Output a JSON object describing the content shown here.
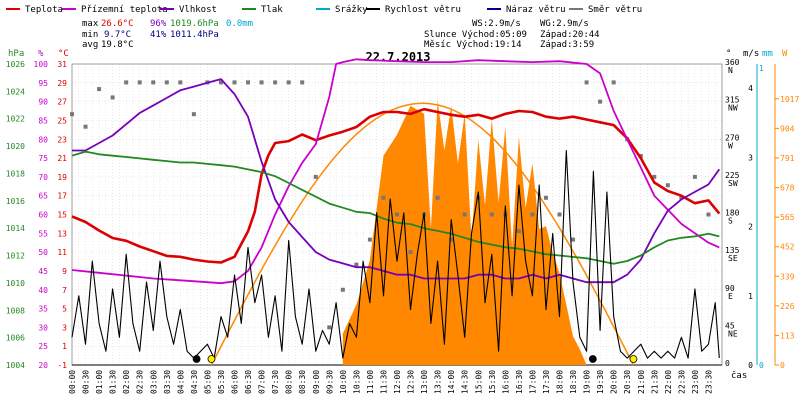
{
  "legend": [
    {
      "name": "Teplota",
      "color": "#dd0000"
    },
    {
      "name": "Přízemní teplota",
      "color": "#cc00cc"
    },
    {
      "name": "Vlhkost",
      "color": "#7700bb"
    },
    {
      "name": "Tlak",
      "color": "#228822"
    },
    {
      "name": "Srážky",
      "color": "#00aacc"
    },
    {
      "name": "Rychlost větru",
      "color": "#000000"
    },
    {
      "name": "Náraz větru",
      "color": "#000088"
    },
    {
      "name": "Směr větru",
      "color": "#777777"
    }
  ],
  "stats": {
    "max_label": "max",
    "max_temp": "26.6°C",
    "max_hum": "96%",
    "max_press": "1019.6hPa",
    "rain": "0.0mm",
    "min_label": "min",
    "min_temp": "9.7°C",
    "min_hum": "41%",
    "min_press": "1011.4hPa",
    "avg_label": "avg",
    "avg_temp": "19.8°C"
  },
  "info": {
    "ws": "WS:2.9m/s",
    "wg": "WG:2.9m/s",
    "sun": "Slunce Východ:05:09",
    "sun_set": "Západ:20:44",
    "moon": "Měsíc Východ:19:14",
    "moon_set": "Západ:3:59"
  },
  "chart_data": {
    "type": "line",
    "title": "22.7.2013",
    "xlabel": "čas",
    "x_ticks": [
      "00:00",
      "00:30",
      "01:00",
      "01:30",
      "02:00",
      "02:30",
      "03:00",
      "03:30",
      "04:00",
      "04:30",
      "05:00",
      "05:30",
      "06:00",
      "06:30",
      "07:00",
      "07:30",
      "08:00",
      "08:30",
      "09:00",
      "09:30",
      "10:00",
      "10:30",
      "11:00",
      "11:30",
      "12:00",
      "12:30",
      "13:00",
      "13:30",
      "14:00",
      "14:30",
      "15:00",
      "15:30",
      "16:00",
      "16:30",
      "17:00",
      "17:30",
      "18:00",
      "18:30",
      "19:00",
      "19:30",
      "20:00",
      "20:30",
      "21:00",
      "21:30",
      "22:00",
      "22:30",
      "23:00",
      "23:30"
    ],
    "axes": {
      "hpa": {
        "unit": "hPa",
        "ticks": [
          "1026",
          "1024",
          "1022",
          "1020",
          "1018",
          "1016",
          "1014",
          "1012",
          "1010",
          "1008",
          "1006",
          "1004"
        ],
        "range": [
          1004,
          1026
        ]
      },
      "percent": {
        "unit": "%",
        "ticks": [
          "100",
          "95",
          "90",
          "85",
          "80",
          "75",
          "70",
          "65",
          "60",
          "55",
          "50",
          "45",
          "40",
          "35",
          "30",
          "25",
          "20"
        ],
        "range": [
          20,
          100
        ]
      },
      "celsius": {
        "unit": "°C",
        "ticks": [
          "31",
          "29",
          "27",
          "25",
          "23",
          "21",
          "19",
          "17",
          "15",
          "13",
          "11",
          "9",
          "7",
          "5",
          "3",
          "1",
          "-1"
        ],
        "range": [
          -1,
          31
        ]
      },
      "direction": {
        "unit": "°",
        "ticks": [
          "360",
          "315",
          "270",
          "225",
          "180",
          "135",
          "90",
          "45",
          "0"
        ],
        "names": [
          "N",
          "NW",
          "W",
          "SW",
          "S",
          "SE",
          "E",
          "NE",
          ""
        ],
        "range": [
          0,
          360
        ]
      },
      "wind": {
        "unit": "m/s",
        "ticks": [
          "4",
          "3",
          "2",
          "1",
          "0"
        ],
        "range": [
          0,
          4.35
        ]
      },
      "rain": {
        "unit": "mm",
        "ticks": [
          "1",
          "0"
        ],
        "range": [
          0,
          1
        ]
      },
      "solar": {
        "unit": "W",
        "ticks": [
          "1017",
          "904",
          "791",
          "678",
          "565",
          "452",
          "339",
          "226",
          "113",
          "0"
        ],
        "range": [
          0,
          1150
        ]
      }
    },
    "series": [
      {
        "name": "Teplota",
        "axis": "celsius",
        "color": "#dd0000",
        "x": [
          0,
          0.5,
          1,
          1.5,
          2,
          2.5,
          3,
          3.5,
          4,
          4.5,
          5,
          5.5,
          6,
          6.5,
          6.75,
          7,
          7.25,
          7.5,
          8,
          8.5,
          9,
          9.5,
          10,
          10.5,
          11,
          11.5,
          12,
          12.5,
          13,
          13.5,
          14,
          14.5,
          15,
          15.5,
          16,
          16.5,
          17,
          17.5,
          18,
          18.5,
          19,
          19.5,
          20,
          20.5,
          21,
          21.5,
          22,
          22.5,
          23,
          23.5,
          23.9
        ],
        "y": [
          14.8,
          14.2,
          13.3,
          12.5,
          12.2,
          11.6,
          11.1,
          10.6,
          10.5,
          10.2,
          10.0,
          9.9,
          10.5,
          13.2,
          15.3,
          19.3,
          21.3,
          22.6,
          22.8,
          23.5,
          22.9,
          23.4,
          23.8,
          24.3,
          25.4,
          25.9,
          25.9,
          25.7,
          26.2,
          25.9,
          25.6,
          25.4,
          25.6,
          25.2,
          25.7,
          26.0,
          25.9,
          25.4,
          25.2,
          25.4,
          25.1,
          24.8,
          24.5,
          23.1,
          21.0,
          18.4,
          17.5,
          17.0,
          16.2,
          16.5,
          15.1
        ]
      },
      {
        "name": "Přízemní teplota",
        "axis": "celsius",
        "color": "#cc00cc",
        "x": [
          0,
          1,
          2,
          3,
          4,
          5,
          5.5,
          6,
          6.5,
          7,
          7.5,
          8,
          8.5,
          9,
          9.5,
          9.75,
          10,
          10.5,
          11,
          12,
          13,
          14,
          15,
          16,
          17,
          18,
          19,
          19.5,
          20,
          20.5,
          21,
          21.5,
          22,
          22.5,
          23,
          23.5,
          23.9
        ],
        "y": [
          9.1,
          8.8,
          8.5,
          8.2,
          8.0,
          7.8,
          7.7,
          7.9,
          9.0,
          11.5,
          15.0,
          18.0,
          20.5,
          22.5,
          27.5,
          31.0,
          31.2,
          31.5,
          31.4,
          31.3,
          31.2,
          31.2,
          31.4,
          31.3,
          31.2,
          31.3,
          31.0,
          30.0,
          26.0,
          23.0,
          20.0,
          17.0,
          15.5,
          14.0,
          13.0,
          12.0,
          11.5
        ]
      },
      {
        "name": "Vlhkost",
        "axis": "percent",
        "color": "#7700bb",
        "x": [
          0,
          0.5,
          1,
          1.5,
          2,
          2.5,
          3,
          3.5,
          4,
          4.5,
          5,
          5.5,
          6,
          6.5,
          7,
          7.5,
          8,
          8.5,
          9,
          9.5,
          10,
          10.5,
          11,
          11.5,
          12,
          12.5,
          13,
          13.5,
          14,
          14.5,
          15,
          15.5,
          16,
          16.5,
          17,
          17.5,
          18,
          18.5,
          19,
          19.5,
          20,
          20.5,
          21,
          21.5,
          22,
          22.5,
          23,
          23.5,
          23.9
        ],
        "y": [
          77,
          77,
          79,
          81,
          84,
          87,
          89,
          91,
          93,
          94,
          95,
          96,
          92,
          86,
          74,
          64,
          58,
          54,
          50,
          48,
          47,
          46,
          46,
          45,
          44,
          44,
          43,
          43,
          43,
          43,
          44,
          44,
          43,
          43,
          44,
          43,
          44,
          43,
          42,
          42,
          42,
          44,
          48,
          55,
          61,
          64,
          66,
          68,
          72
        ]
      },
      {
        "name": "Tlak",
        "axis": "hpa",
        "color": "#228822",
        "x": [
          0,
          0.5,
          1,
          1.5,
          2,
          2.5,
          3,
          3.5,
          4,
          4.5,
          5,
          5.5,
          6,
          6.5,
          7,
          7.5,
          8,
          8.5,
          9,
          9.5,
          10,
          10.5,
          11,
          11.5,
          12,
          12.5,
          13,
          13.5,
          14,
          14.5,
          15,
          15.5,
          16,
          16.5,
          17,
          17.5,
          18,
          18.5,
          19,
          19.5,
          20,
          20.5,
          21,
          21.5,
          22,
          22.5,
          23,
          23.5,
          23.9
        ],
        "y": [
          1019.3,
          1019.6,
          1019.4,
          1019.3,
          1019.2,
          1019.1,
          1019.0,
          1018.9,
          1018.8,
          1018.8,
          1018.7,
          1018.6,
          1018.5,
          1018.3,
          1018.1,
          1017.8,
          1017.3,
          1016.8,
          1016.3,
          1015.8,
          1015.5,
          1015.2,
          1015.1,
          1014.7,
          1014.4,
          1014.3,
          1014.0,
          1013.8,
          1013.6,
          1013.3,
          1013.0,
          1012.8,
          1012.6,
          1012.5,
          1012.3,
          1012.1,
          1012.0,
          1011.9,
          1011.8,
          1011.6,
          1011.4,
          1011.6,
          1012.0,
          1012.6,
          1013.1,
          1013.3,
          1013.4,
          1013.6,
          1013.4
        ]
      },
      {
        "name": "Rychlost větru",
        "axis": "wind",
        "color": "#000000",
        "x": [
          0,
          0.25,
          0.5,
          0.75,
          1,
          1.25,
          1.5,
          1.75,
          2,
          2.25,
          2.5,
          2.75,
          3,
          3.25,
          3.5,
          3.75,
          4,
          4.25,
          4.5,
          4.75,
          5,
          5.25,
          5.5,
          5.75,
          6,
          6.25,
          6.5,
          6.75,
          7,
          7.25,
          7.5,
          7.75,
          8,
          8.25,
          8.5,
          8.75,
          9,
          9.25,
          9.5,
          9.75,
          10,
          10.25,
          10.5,
          10.75,
          11,
          11.25,
          11.5,
          11.75,
          12,
          12.25,
          12.5,
          12.75,
          13,
          13.25,
          13.5,
          13.75,
          14,
          14.25,
          14.5,
          14.75,
          15,
          15.25,
          15.5,
          15.75,
          16,
          16.25,
          16.5,
          16.75,
          17,
          17.25,
          17.5,
          17.75,
          18,
          18.25,
          18.5,
          18.75,
          19,
          19.25,
          19.5,
          19.75,
          20,
          20.25,
          20.5,
          20.75,
          21,
          21.25,
          21.5,
          21.75,
          22,
          22.25,
          22.5,
          22.75,
          23,
          23.25,
          23.5,
          23.75,
          23.9
        ],
        "y": [
          0.4,
          1.0,
          0.3,
          1.5,
          0.6,
          0.2,
          1.1,
          0.4,
          1.6,
          0.6,
          0.2,
          1.2,
          0.5,
          1.5,
          0.7,
          0.3,
          0.8,
          0.2,
          0.1,
          0.2,
          0.3,
          0.1,
          0.7,
          0.4,
          1.3,
          0.6,
          1.7,
          0.9,
          1.3,
          0.4,
          1.0,
          0.2,
          1.8,
          0.7,
          0.3,
          1.1,
          0.2,
          0.5,
          0.3,
          0.9,
          0.1,
          0.6,
          0.4,
          1.5,
          0.9,
          2.2,
          1.0,
          2.4,
          1.5,
          2.2,
          0.8,
          1.6,
          2.2,
          0.6,
          1.5,
          0.3,
          2.1,
          1.3,
          0.4,
          1.9,
          2.5,
          0.9,
          1.6,
          0.2,
          2.3,
          1.0,
          2.6,
          1.5,
          1.0,
          2.6,
          0.8,
          1.9,
          0.7,
          3.1,
          1.2,
          0.4,
          0.2,
          2.8,
          0.5,
          2.5,
          0.7,
          0.2,
          0.1,
          0.2,
          0.3,
          0.1,
          0.2,
          0.1,
          0.2,
          0.1,
          0.4,
          0.1,
          1.1,
          0.2,
          0.3,
          0.9,
          0.1
        ]
      },
      {
        "name": "Směr větru",
        "axis": "direction",
        "color": "#777777",
        "x": [
          0,
          0.5,
          1,
          1.5,
          2,
          2.5,
          3,
          3.5,
          4,
          4.5,
          5,
          5.5,
          6,
          6.5,
          7,
          7.5,
          8,
          8.5,
          9,
          9.5,
          10,
          10.5,
          11,
          11.5,
          12,
          12.5,
          13,
          13.5,
          14,
          14.5,
          15,
          15.5,
          16,
          16.5,
          17,
          17.5,
          18,
          18.5,
          19,
          19.5,
          20,
          20.5,
          21,
          21.5,
          22,
          22.5,
          23,
          23.5
        ],
        "y": [
          300,
          285,
          330,
          320,
          338,
          338,
          338,
          338,
          338,
          300,
          338,
          338,
          338,
          338,
          338,
          338,
          338,
          338,
          225,
          45,
          90,
          120,
          150,
          200,
          180,
          135,
          180,
          200,
          150,
          180,
          200,
          180,
          180,
          160,
          180,
          200,
          180,
          150,
          338,
          315,
          338,
          270,
          250,
          225,
          215,
          200,
          225,
          180
        ]
      }
    ],
    "solar": {
      "axis": "solar",
      "color": "#ff8800",
      "x": [
        10,
        10.5,
        11,
        11.5,
        12,
        12.5,
        13,
        13.25,
        13.5,
        13.75,
        14,
        14.25,
        14.5,
        14.75,
        15,
        15.25,
        15.5,
        15.75,
        16,
        16.25,
        16.5,
        16.75,
        17,
        17.25,
        17.5,
        17.75,
        18,
        18.25,
        18.5,
        18.75,
        19
      ],
      "y": [
        120,
        230,
        400,
        800,
        880,
        990,
        960,
        520,
        1010,
        820,
        990,
        770,
        960,
        480,
        860,
        610,
        940,
        620,
        910,
        450,
        870,
        600,
        770,
        520,
        530,
        430,
        350,
        230,
        110,
        60,
        0
      ]
    },
    "sun_arc": {
      "axis": "solar",
      "color": "#ff8800",
      "rise": 5.15,
      "set": 20.73,
      "peak": 1000
    },
    "markers": [
      {
        "x": 4.6,
        "color": "#000000"
      },
      {
        "x": 5.15,
        "color": "#ffee00"
      },
      {
        "x": 19.23,
        "color": "#000000"
      },
      {
        "x": 20.73,
        "color": "#ffee00"
      }
    ],
    "grid": true
  }
}
